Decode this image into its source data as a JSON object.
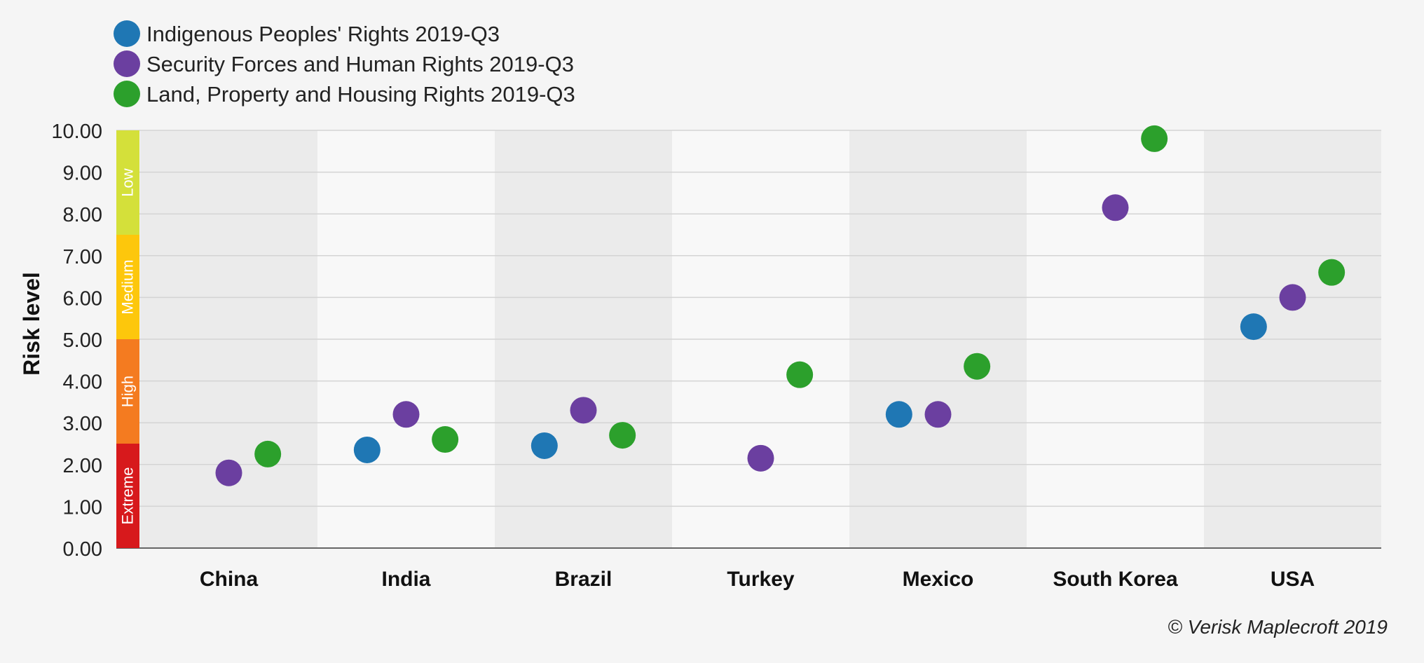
{
  "chart_data": {
    "type": "scatter",
    "categories": [
      "China",
      "India",
      "Brazil",
      "Turkey",
      "Mexico",
      "South Korea",
      "USA"
    ],
    "series": [
      {
        "name": "Indigenous Peoples' Rights 2019-Q3",
        "color": "#1f77b4",
        "values": [
          null,
          2.35,
          2.45,
          null,
          3.2,
          null,
          5.3
        ]
      },
      {
        "name": "Security Forces and Human Rights 2019-Q3",
        "color": "#6b3fa0",
        "values": [
          1.8,
          3.2,
          3.3,
          2.15,
          3.2,
          8.15,
          6.0
        ]
      },
      {
        "name": "Land, Property and Housing Rights 2019-Q3",
        "color": "#2ca02c",
        "values": [
          2.25,
          2.6,
          2.7,
          4.15,
          4.35,
          9.8,
          6.6
        ]
      }
    ],
    "ylabel": "Risk level",
    "ylim": [
      0,
      10
    ],
    "yticks": [
      "0.00",
      "1.00",
      "2.00",
      "3.00",
      "4.00",
      "5.00",
      "6.00",
      "7.00",
      "8.00",
      "9.00",
      "10.00"
    ],
    "grid": true,
    "legend_position": "top-left",
    "risk_bands": [
      {
        "label": "Extreme",
        "from": 0,
        "to": 2.5,
        "color": "#d7191c"
      },
      {
        "label": "High",
        "from": 2.5,
        "to": 5,
        "color": "#f47b20"
      },
      {
        "label": "Medium",
        "from": 5,
        "to": 7.5,
        "color": "#fdc70c"
      },
      {
        "label": "Low",
        "from": 7.5,
        "to": 10,
        "color": "#d4e03a"
      }
    ],
    "credit": "© Verisk Maplecroft 2019"
  }
}
